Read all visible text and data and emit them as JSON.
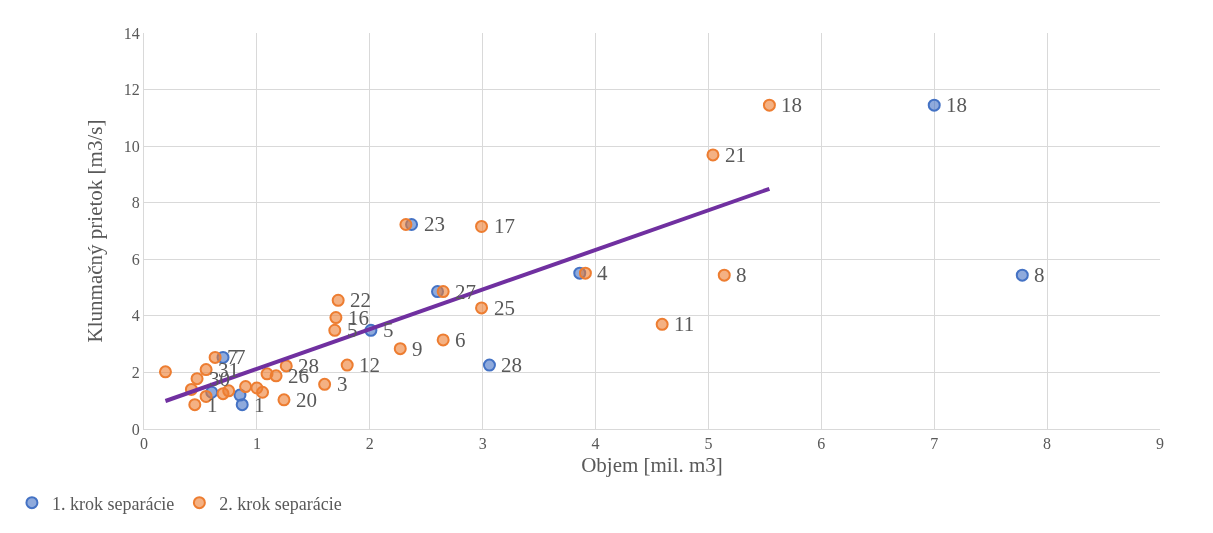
{
  "chart_data": {
    "type": "scatter",
    "xlabel": "Objem [mil. m3]",
    "ylabel": "Klunmačný prietok [m3/s]",
    "xlim": [
      0,
      9
    ],
    "xticks": [
      0,
      1,
      2,
      3,
      4,
      5,
      6,
      7,
      8,
      9
    ],
    "ylim": [
      0,
      14
    ],
    "yticks": [
      0,
      2,
      4,
      6,
      8,
      10,
      12,
      14
    ],
    "grid": true,
    "legend": "bottom left",
    "marker": "circle",
    "series": [
      {
        "name": "1. krok separácie",
        "color": "#4472c4",
        "x": [
          7.0,
          7.78,
          3.86,
          2.37,
          2.6,
          2.01,
          3.06,
          0.87,
          0.7,
          0.6,
          0.85
        ],
        "values": [
          11.45,
          5.44,
          5.51,
          7.23,
          4.86,
          3.49,
          2.26,
          0.86,
          2.53,
          1.3,
          1.2
        ]
      },
      {
        "name": "2. krok separácie",
        "color": "#ed7d31",
        "x": [
          5.54,
          5.04,
          3.91,
          5.14,
          4.59,
          2.32,
          2.99,
          2.65,
          2.99,
          1.72,
          1.7,
          1.69,
          2.27,
          2.65,
          1.8,
          1.6,
          1.26,
          1.17,
          1.09,
          1.24,
          0.45,
          0.19,
          0.47,
          0.63,
          0.55,
          0.42,
          0.55,
          0.75,
          0.9,
          1.0,
          1.05,
          0.7
        ],
        "values": [
          11.45,
          9.69,
          5.51,
          5.44,
          3.7,
          7.23,
          7.16,
          4.86,
          4.28,
          4.55,
          3.94,
          3.49,
          2.84,
          3.15,
          2.26,
          1.58,
          2.23,
          1.88,
          1.95,
          1.03,
          0.86,
          2.02,
          1.78,
          2.53,
          2.1,
          1.4,
          1.15,
          1.35,
          1.5,
          1.45,
          1.3,
          1.25
        ]
      },
      {
        "type": "line",
        "color": "#7030a0",
        "x": [
          0.19,
          5.54
        ],
        "values": [
          0.99,
          8.49
        ],
        "marker": "none"
      }
    ],
    "annotations": [
      {
        "text": "18",
        "x": 7.0,
        "y": 11.45
      },
      {
        "text": "8",
        "x": 7.78,
        "y": 5.44
      },
      {
        "text": "5",
        "x": 2.01,
        "y": 3.49
      },
      {
        "text": "28",
        "x": 3.06,
        "y": 2.26
      },
      {
        "text": "1",
        "x": 0.87,
        "y": 0.86
      },
      {
        "text": "7",
        "x": 0.7,
        "y": 2.53
      },
      {
        "text": "18",
        "x": 5.54,
        "y": 11.45
      },
      {
        "text": "21",
        "x": 5.04,
        "y": 9.69
      },
      {
        "text": "4",
        "x": 3.91,
        "y": 5.51
      },
      {
        "text": "8",
        "x": 5.14,
        "y": 5.44
      },
      {
        "text": "11",
        "x": 4.59,
        "y": 3.7
      },
      {
        "text": "23",
        "x": 2.37,
        "y": 7.23
      },
      {
        "text": "17",
        "x": 2.99,
        "y": 7.16
      },
      {
        "text": "27",
        "x": 2.65,
        "y": 4.86
      },
      {
        "text": "25",
        "x": 2.99,
        "y": 4.28
      },
      {
        "text": "22",
        "x": 1.72,
        "y": 4.55
      },
      {
        "text": "16",
        "x": 1.7,
        "y": 3.94
      },
      {
        "text": "9",
        "x": 2.27,
        "y": 2.84
      },
      {
        "text": "6",
        "x": 2.65,
        "y": 3.15
      },
      {
        "text": "12",
        "x": 1.8,
        "y": 2.26
      },
      {
        "text": "3",
        "x": 1.6,
        "y": 1.58
      },
      {
        "text": "28",
        "x": 1.26,
        "y": 2.23
      },
      {
        "text": "26",
        "x": 1.17,
        "y": 1.88
      },
      {
        "text": "20",
        "x": 1.24,
        "y": 1.03
      },
      {
        "text": "1",
        "x": 0.45,
        "y": 0.86
      },
      {
        "text": "30",
        "x": 0.47,
        "y": 1.78
      },
      {
        "text": "5",
        "x": 1.69,
        "y": 3.49
      },
      {
        "text": "7",
        "x": 0.63,
        "y": 2.53
      },
      {
        "text": "31",
        "x": 0.55,
        "y": 2.1
      }
    ]
  }
}
